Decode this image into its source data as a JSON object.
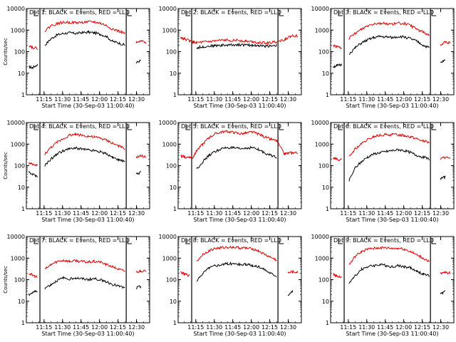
{
  "chart_data": {
    "type": "line",
    "layout": "3x3 grid of panels",
    "shared": {
      "ylabel": "Counts/sec",
      "xlabel": "Start Time (30-Sep-03 11:00:40)",
      "y_scale": "log",
      "ylim": [
        1,
        10000
      ],
      "y_ticks": [
        1,
        10,
        100,
        1000,
        10000
      ],
      "y_tick_labels": [
        "1",
        "10",
        "100",
        "1000",
        "10000"
      ],
      "x_range_minutes": [
        0,
        40
      ],
      "x_ticks_minutes": [
        14.33,
        29.33,
        44.33,
        59.33,
        74.33,
        89.33
      ],
      "x_tick_labels": [
        "11:15",
        "11:30",
        "11:45",
        "12:00",
        "12:15",
        "12:30"
      ],
      "x_view_minutes": [
        0,
        100
      ],
      "gap_markers_minutes": [
        11.0,
        81.0
      ],
      "series_names": [
        "Events (BLACK)",
        "LLD (RED)"
      ],
      "series_colors": [
        "#000000",
        "#e00000"
      ]
    },
    "panels": [
      {
        "title": "Det 1: BLACK = Events, RED = LLD",
        "series": [
          {
            "name": "Events",
            "x": [
              2,
              5,
              9,
              12,
              15,
              20,
              25,
              30,
              35,
              40,
              45,
              50,
              55,
              60,
              65,
              70,
              75,
              80,
              86,
              89,
              93,
              97
            ],
            "values": [
              20,
              18,
              25,
              null,
              200,
              400,
              600,
              700,
              750,
              700,
              750,
              800,
              750,
              650,
              500,
              300,
              250,
              200,
              null,
              30,
              40,
              null
            ]
          },
          {
            "name": "LLD",
            "x": [
              2,
              5,
              9,
              12,
              15,
              20,
              25,
              30,
              35,
              40,
              45,
              50,
              55,
              60,
              65,
              70,
              75,
              80,
              86,
              89,
              93,
              97
            ],
            "values": [
              200,
              160,
              140,
              null,
              900,
              1600,
              2000,
              2300,
              2300,
              2200,
              2300,
              2400,
              2400,
              2100,
              1600,
              1100,
              900,
              700,
              null,
              250,
              300,
              280
            ]
          }
        ]
      },
      {
        "title": "Det 2: BLACK = Events, RED = LLD",
        "series": [
          {
            "name": "Events",
            "x": [
              2,
              5,
              9,
              12,
              15,
              20,
              25,
              30,
              35,
              40,
              45,
              50,
              55,
              60,
              65,
              70,
              75,
              80,
              86,
              89,
              93,
              97
            ],
            "values": [
              null,
              null,
              null,
              null,
              150,
              170,
              180,
              190,
              200,
              200,
              210,
              210,
              200,
              200,
              190,
              180,
              190,
              200,
              null,
              null,
              null,
              null
            ]
          },
          {
            "name": "LLD",
            "x": [
              2,
              5,
              9,
              12,
              15,
              20,
              25,
              30,
              35,
              40,
              45,
              50,
              55,
              60,
              65,
              70,
              75,
              80,
              86,
              89,
              93,
              97
            ],
            "values": [
              450,
              400,
              320,
              280,
              260,
              270,
              290,
              310,
              330,
              340,
              340,
              330,
              310,
              290,
              270,
              250,
              260,
              300,
              350,
              450,
              550,
              520
            ]
          }
        ]
      },
      {
        "title": "Det 3: BLACK = Events, RED = LLD",
        "series": [
          {
            "name": "Events",
            "x": [
              2,
              5,
              9,
              12,
              15,
              20,
              25,
              30,
              35,
              40,
              45,
              50,
              55,
              60,
              65,
              70,
              75,
              80,
              86,
              89,
              93,
              97
            ],
            "values": [
              20,
              22,
              25,
              null,
              80,
              150,
              250,
              350,
              450,
              500,
              480,
              450,
              500,
              480,
              400,
              300,
              200,
              150,
              null,
              30,
              40,
              null
            ]
          },
          {
            "name": "LLD",
            "x": [
              2,
              5,
              9,
              12,
              15,
              20,
              25,
              30,
              35,
              40,
              45,
              50,
              55,
              60,
              65,
              70,
              75,
              80,
              86,
              89,
              93,
              97
            ],
            "values": [
              200,
              170,
              150,
              null,
              400,
              700,
              1100,
              1600,
              2000,
              2100,
              2000,
              1900,
              2100,
              2000,
              1600,
              1100,
              800,
              600,
              null,
              200,
              280,
              250
            ]
          }
        ]
      },
      {
        "title": "Det 4: BLACK = Events, RED = LLD",
        "series": [
          {
            "name": "Events",
            "x": [
              2,
              5,
              9,
              12,
              15,
              20,
              25,
              30,
              35,
              40,
              45,
              50,
              55,
              60,
              65,
              70,
              75,
              80,
              86,
              89,
              93,
              97
            ],
            "values": [
              50,
              40,
              30,
              null,
              100,
              200,
              350,
              500,
              600,
              650,
              600,
              550,
              500,
              450,
              350,
              250,
              180,
              150,
              null,
              40,
              50,
              null
            ]
          },
          {
            "name": "LLD",
            "x": [
              2,
              5,
              9,
              12,
              15,
              20,
              25,
              30,
              35,
              40,
              45,
              50,
              55,
              60,
              65,
              70,
              75,
              80,
              86,
              89,
              93,
              97
            ],
            "values": [
              130,
              110,
              100,
              null,
              350,
              700,
              1200,
              1800,
              2600,
              2800,
              2600,
              2300,
              2100,
              1900,
              1500,
              1100,
              800,
              600,
              null,
              240,
              280,
              250
            ]
          }
        ]
      },
      {
        "title": "Det 5: BLACK = Events, RED = LLD",
        "series": [
          {
            "name": "Events",
            "x": [
              2,
              5,
              9,
              12,
              15,
              20,
              25,
              30,
              35,
              40,
              45,
              50,
              55,
              60,
              65,
              70,
              75,
              80,
              86,
              89,
              93,
              97
            ],
            "values": [
              null,
              null,
              null,
              null,
              70,
              150,
              300,
              450,
              600,
              700,
              650,
              600,
              650,
              700,
              550,
              400,
              300,
              250,
              null,
              null,
              null,
              null
            ]
          },
          {
            "name": "LLD",
            "x": [
              2,
              5,
              9,
              12,
              15,
              20,
              25,
              30,
              35,
              40,
              45,
              50,
              55,
              60,
              65,
              70,
              75,
              80,
              86,
              89,
              93,
              97
            ],
            "values": [
              280,
              250,
              250,
              240,
              500,
              1000,
              2000,
              3000,
              3700,
              3800,
              3500,
              3000,
              3200,
              3600,
              3000,
              2200,
              1700,
              1400,
              350,
              380,
              400,
              400
            ]
          }
        ]
      },
      {
        "title": "Det 6: BLACK = Events, RED = LLD",
        "series": [
          {
            "name": "Events",
            "x": [
              2,
              5,
              9,
              12,
              15,
              20,
              25,
              30,
              35,
              40,
              45,
              50,
              55,
              60,
              65,
              70,
              75,
              80,
              86,
              89,
              93,
              97
            ],
            "values": [
              null,
              null,
              null,
              null,
              20,
              80,
              150,
              250,
              350,
              400,
              450,
              500,
              550,
              500,
              400,
              300,
              250,
              200,
              null,
              25,
              30,
              null
            ]
          },
          {
            "name": "LLD",
            "x": [
              2,
              5,
              9,
              12,
              15,
              20,
              25,
              30,
              35,
              40,
              45,
              50,
              55,
              60,
              65,
              70,
              75,
              80,
              86,
              89,
              93,
              97
            ],
            "values": [
              230,
              200,
              180,
              null,
              250,
              600,
              1000,
              1600,
              2200,
              2600,
              2700,
              2800,
              2700,
              2500,
              2200,
              1800,
              1400,
              1200,
              null,
              200,
              250,
              200
            ]
          }
        ]
      },
      {
        "title": "Det 7: BLACK = Events, RED = LLD",
        "series": [
          {
            "name": "Events",
            "x": [
              2,
              5,
              9,
              12,
              15,
              20,
              25,
              30,
              35,
              40,
              45,
              50,
              55,
              60,
              65,
              70,
              75,
              80,
              86,
              89,
              93,
              97
            ],
            "values": [
              20,
              25,
              30,
              null,
              40,
              60,
              90,
              120,
              110,
              120,
              110,
              100,
              110,
              100,
              80,
              60,
              50,
              40,
              null,
              40,
              50,
              null
            ]
          },
          {
            "name": "LLD",
            "x": [
              2,
              5,
              9,
              12,
              15,
              20,
              25,
              30,
              35,
              40,
              45,
              50,
              55,
              60,
              65,
              70,
              75,
              80,
              86,
              89,
              93,
              97
            ],
            "values": [
              200,
              160,
              130,
              null,
              300,
              500,
              700,
              800,
              700,
              750,
              700,
              650,
              700,
              650,
              500,
              400,
              300,
              250,
              null,
              220,
              260,
              240
            ]
          }
        ]
      },
      {
        "title": "Det 8: BLACK = Events, RED = LLD",
        "series": [
          {
            "name": "Events",
            "x": [
              2,
              5,
              9,
              12,
              15,
              20,
              25,
              30,
              35,
              40,
              45,
              50,
              55,
              60,
              65,
              70,
              75,
              80,
              86,
              89,
              93,
              97
            ],
            "values": [
              null,
              null,
              15,
              null,
              80,
              200,
              350,
              450,
              500,
              550,
              550,
              500,
              500,
              450,
              400,
              300,
              200,
              150,
              null,
              20,
              30,
              null
            ]
          },
          {
            "name": "LLD",
            "x": [
              2,
              5,
              9,
              12,
              15,
              20,
              25,
              30,
              35,
              40,
              45,
              50,
              55,
              60,
              65,
              70,
              75,
              80,
              86,
              89,
              93,
              97
            ],
            "values": [
              220,
              180,
              160,
              null,
              700,
              1500,
              2200,
              2800,
              3000,
              3200,
              3200,
              3000,
              2900,
              2700,
              2200,
              1500,
              1100,
              800,
              null,
              200,
              230,
              220
            ]
          }
        ]
      },
      {
        "title": "Det 9: BLACK = Events, RED = LLD",
        "series": [
          {
            "name": "Events",
            "x": [
              2,
              5,
              9,
              12,
              15,
              20,
              25,
              30,
              35,
              40,
              45,
              50,
              55,
              60,
              65,
              70,
              75,
              80,
              86,
              89,
              93,
              97
            ],
            "values": [
              null,
              null,
              15,
              null,
              70,
              150,
              300,
              400,
              450,
              500,
              450,
              400,
              450,
              400,
              350,
              250,
              180,
              150,
              null,
              20,
              30,
              null
            ]
          },
          {
            "name": "LLD",
            "x": [
              2,
              5,
              9,
              12,
              15,
              20,
              25,
              30,
              35,
              40,
              45,
              50,
              55,
              60,
              65,
              70,
              75,
              80,
              86,
              89,
              93,
              97
            ],
            "values": [
              180,
              150,
              130,
              null,
              500,
              1200,
              2000,
              2600,
              2800,
              3000,
              3000,
              2800,
              2900,
              2600,
              2000,
              1400,
              1000,
              700,
              null,
              180,
              220,
              200
            ]
          }
        ]
      }
    ]
  }
}
